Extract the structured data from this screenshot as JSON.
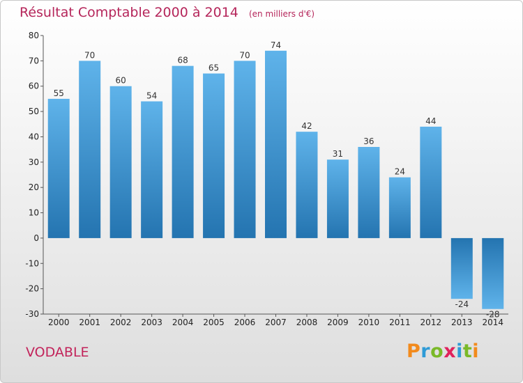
{
  "header": {
    "title": "Résultat Comptable 2000 à 2014",
    "unit": "(en milliers d'€)"
  },
  "commune": "VODABLE",
  "logo": {
    "letters": [
      "P",
      "r",
      "o",
      "x",
      "i",
      "t",
      "i"
    ],
    "colors": [
      "#f28a1c",
      "#2f9bd6",
      "#7ab928",
      "#e0225c",
      "#2f9bd6",
      "#7ab928",
      "#f28a1c"
    ]
  },
  "colors": {
    "bar_light": "#5fb3ea",
    "bar_dark": "#2474b0",
    "title": "#b5255a",
    "axis_text": "#222222"
  },
  "chart_data": {
    "type": "bar",
    "title": "Résultat Comptable 2000 à 2014",
    "categories": [
      "2000",
      "2001",
      "2002",
      "2003",
      "2004",
      "2005",
      "2006",
      "2007",
      "2008",
      "2009",
      "2010",
      "2011",
      "2012",
      "2013",
      "2014"
    ],
    "values": [
      55,
      70,
      60,
      54,
      68,
      65,
      70,
      74,
      42,
      31,
      36,
      24,
      44,
      -24,
      -28
    ],
    "ylim": [
      -30,
      80
    ],
    "yticks": [
      -30,
      -20,
      -10,
      0,
      10,
      20,
      30,
      40,
      50,
      60,
      70,
      80
    ],
    "grid": false,
    "legend": "none"
  }
}
